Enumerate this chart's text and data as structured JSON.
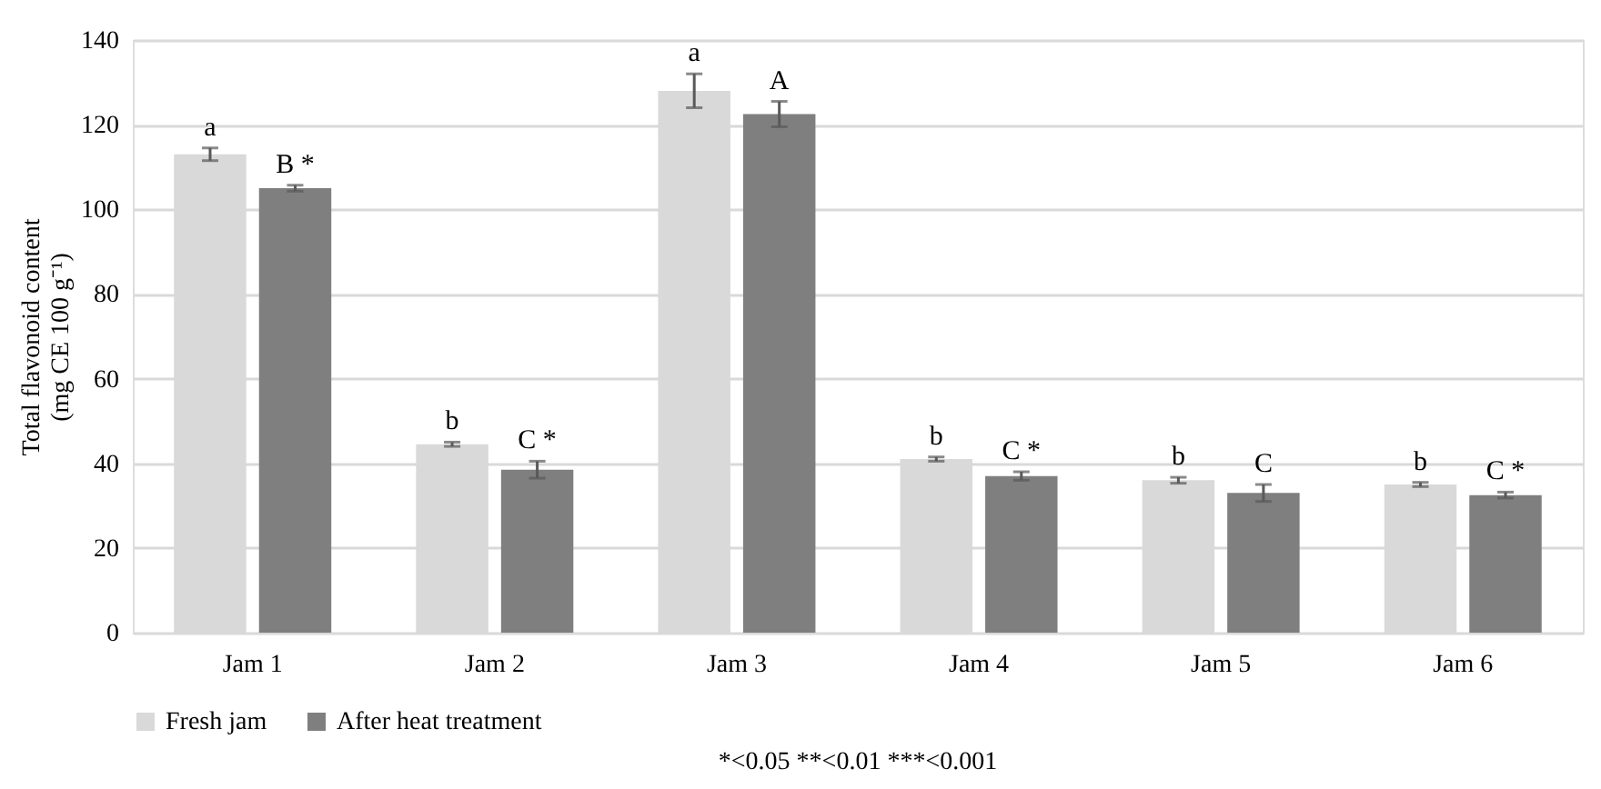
{
  "chart_data": {
    "type": "bar",
    "ylabel": "Total flavonoid content\n(mg CE 100 g⁻¹)",
    "categories": [
      "Jam 1",
      "Jam 2",
      "Jam 3",
      "Jam 4",
      "Jam 5",
      "Jam 6"
    ],
    "series": [
      {
        "name": "Fresh jam",
        "color": "#d9d9d9",
        "values": [
          113,
          44.5,
          128,
          41,
          36,
          35
        ],
        "errors": [
          1.5,
          0.5,
          4,
          0.5,
          0.7,
          0.5
        ],
        "value_labels": [
          "a",
          "b",
          "a",
          "b",
          "b",
          "b"
        ]
      },
      {
        "name": "After  heat treatment",
        "color": "#7f7f7f",
        "values": [
          105,
          38.5,
          122.5,
          37,
          33,
          32.5
        ],
        "errors": [
          0.7,
          2,
          3,
          1,
          2,
          0.7
        ],
        "value_labels": [
          "B *",
          "C *",
          "A",
          "C *",
          "C",
          "C *"
        ]
      }
    ],
    "ylim": [
      0,
      140
    ],
    "yticks": [
      0,
      20,
      40,
      60,
      80,
      100,
      120,
      140
    ],
    "grid": "y",
    "legend": "bottom",
    "annotations": [
      "*<0.05 **<0.01 ***<0.001"
    ]
  }
}
